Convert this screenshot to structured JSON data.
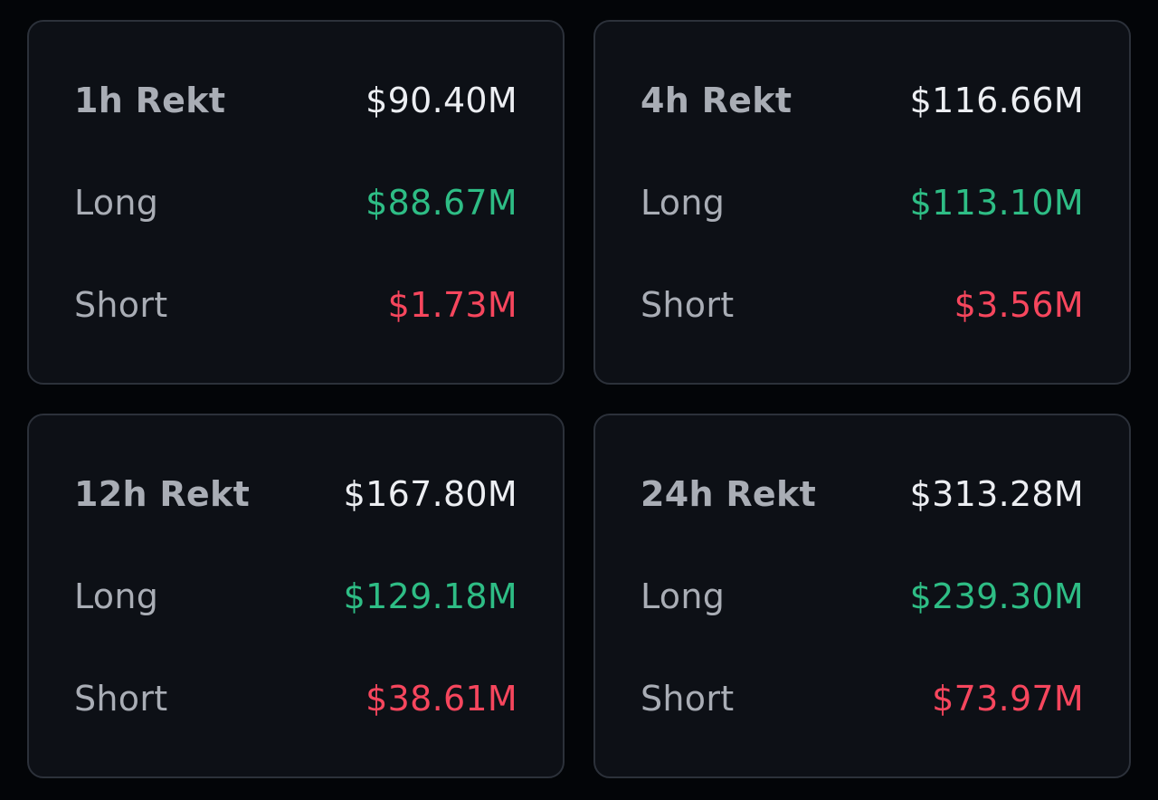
{
  "colors": {
    "background": "#030508",
    "card": "#0d1016",
    "border": "#2c313a",
    "label": "#a9adb5",
    "total": "#eceef2",
    "long": "#2ebd85",
    "short": "#f6465d"
  },
  "cards": [
    {
      "title": "1h Rekt",
      "total": "$90.40M",
      "long_label": "Long",
      "long": "$88.67M",
      "short_label": "Short",
      "short": "$1.73M"
    },
    {
      "title": "4h Rekt",
      "total": "$116.66M",
      "long_label": "Long",
      "long": "$113.10M",
      "short_label": "Short",
      "short": "$3.56M"
    },
    {
      "title": "12h Rekt",
      "total": "$167.80M",
      "long_label": "Long",
      "long": "$129.18M",
      "short_label": "Short",
      "short": "$38.61M"
    },
    {
      "title": "24h Rekt",
      "total": "$313.28M",
      "long_label": "Long",
      "long": "$239.30M",
      "short_label": "Short",
      "short": "$73.97M"
    }
  ]
}
